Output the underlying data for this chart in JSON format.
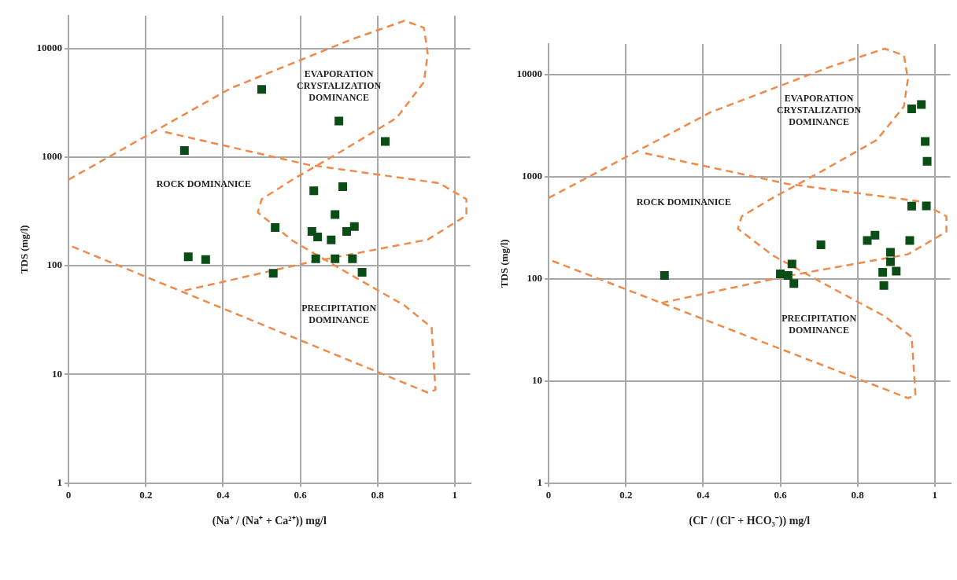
{
  "chart_data": [
    {
      "type": "scatter",
      "xlabel": "(Na⁺ / (Na⁺ + Ca²⁺)) mg/l",
      "ylabel": "TDS (mg/l)",
      "log": "y",
      "grid": true,
      "legend": false,
      "marker": "square",
      "xlim": [
        0,
        1.04
      ],
      "xticks": [
        0,
        0.2,
        0.4,
        0.6,
        0.8,
        1
      ],
      "ylim": [
        1,
        20000
      ],
      "yticks": [
        1,
        10,
        100,
        1000,
        10000
      ],
      "annotations": [
        "EVAPORATION\nCRYSTALIZATION\nDOMINANCE",
        "ROCK DOMINANICE",
        "PRECIPITATION\nDOMINANCE"
      ],
      "series": [
        {
          "color": "#0b4d16",
          "x": [
            0.5,
            0.7,
            0.82,
            0.3,
            0.635,
            0.71,
            0.69,
            0.535,
            0.63,
            0.645,
            0.68,
            0.72,
            0.74,
            0.31,
            0.355,
            0.64,
            0.69,
            0.735,
            0.53,
            0.76
          ],
          "values": [
            4200,
            2150,
            1390,
            1150,
            490,
            535,
            296,
            225,
            207,
            184,
            173,
            207,
            229,
            121,
            114,
            116,
            116,
            116,
            85,
            87
          ]
        },
        {
          "type": "line",
          "color": "#f08a4b",
          "line_style": "dashed",
          "marker": "none",
          "x": [
            0,
            0.42,
            0.73,
            0.87,
            0.92,
            0.93,
            0.92,
            0.85,
            0.71,
            0.58,
            0.5,
            0.49,
            0.58,
            0.71,
            0.87,
            0.94,
            0.95,
            0.93,
            0
          ],
          "values": [
            620,
            4300,
            12000,
            18000,
            15500,
            9000,
            4900,
            2300,
            1150,
            620,
            410,
            310,
            170,
            91,
            43,
            27,
            7.2,
            6.8,
            155
          ]
        },
        {
          "type": "line",
          "color": "#f08a4b",
          "line_style": "dashed",
          "marker": "none",
          "x": [
            0.25,
            0.62,
            0.96,
            1.03,
            1.03,
            0.93,
            0.62,
            0.29
          ],
          "values": [
            1700,
            850,
            575,
            410,
            290,
            174,
            107,
            58
          ]
        }
      ]
    },
    {
      "type": "scatter",
      "xlabel": "(Cl⁻ / (Cl⁻ + HCO₃⁻)) mg/l",
      "ylabel": "TDS (mg/l)",
      "log": "y",
      "grid": true,
      "legend": false,
      "marker": "square",
      "xlim": [
        0,
        1.04
      ],
      "xticks": [
        0,
        0.2,
        0.4,
        0.6,
        0.8,
        1
      ],
      "ylim": [
        1,
        20000
      ],
      "yticks": [
        1,
        10,
        100,
        1000,
        10000
      ],
      "annotations": [
        "EVAPORATION\nCRYSTALIZATION\nDOMINANCE",
        "ROCK DOMINANICE",
        "PRECIPITATION\nDOMINANCE"
      ],
      "series": [
        {
          "color": "#0b4d16",
          "x": [
            0.94,
            0.965,
            0.975,
            0.98,
            0.94,
            0.978,
            0.825,
            0.845,
            0.935,
            0.705,
            0.885,
            0.885,
            0.865,
            0.9,
            0.868,
            0.63,
            0.6,
            0.62,
            0.635,
            0.3
          ],
          "values": [
            4630,
            5100,
            2220,
            1420,
            516,
            519,
            238,
            268,
            238,
            216,
            182,
            147,
            116,
            119,
            86,
            140,
            112,
            108,
            90,
            108
          ]
        },
        {
          "type": "line",
          "color": "#f08a4b",
          "line_style": "dashed",
          "marker": "none",
          "x": [
            0,
            0.42,
            0.73,
            0.87,
            0.92,
            0.93,
            0.92,
            0.85,
            0.71,
            0.58,
            0.5,
            0.49,
            0.58,
            0.71,
            0.87,
            0.94,
            0.95,
            0.93,
            0
          ],
          "values": [
            620,
            4300,
            12000,
            18000,
            15500,
            9000,
            4900,
            2300,
            1150,
            620,
            410,
            310,
            170,
            91,
            43,
            27,
            7.2,
            6.8,
            155
          ]
        },
        {
          "type": "line",
          "color": "#f08a4b",
          "line_style": "dashed",
          "marker": "none",
          "x": [
            0.25,
            0.62,
            0.96,
            1.03,
            1.03,
            0.93,
            0.62,
            0.29
          ],
          "values": [
            1700,
            850,
            575,
            410,
            290,
            174,
            107,
            58
          ]
        }
      ]
    }
  ]
}
